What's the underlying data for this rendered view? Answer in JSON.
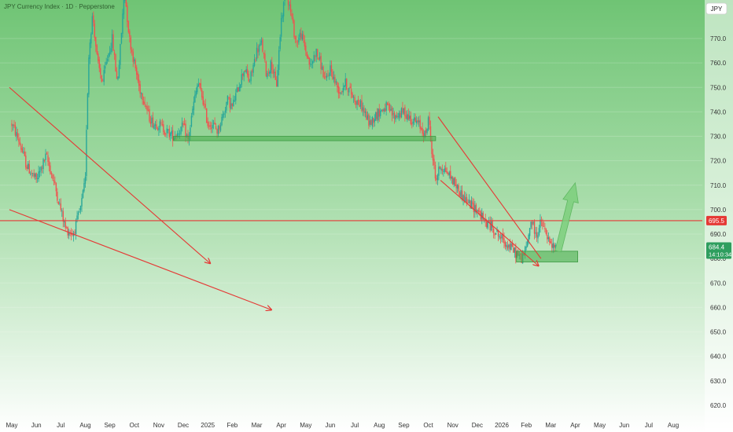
{
  "header": {
    "title": "JPY Currency Index · 1D · Pepperstone",
    "currency_badge": "JPY"
  },
  "colors": {
    "bg_top": "#6fc474",
    "bg_bottom": "#ffffff",
    "up_candle": "#26a69a",
    "down_candle": "#ef5350",
    "trendline": "#e53935",
    "zone_fill": "#4caf50",
    "arrow_fill": "#7ccf7c",
    "price_line": "#e53935",
    "price_tag": "#e53935",
    "last_tag": "#2e9e5e"
  },
  "chart_data": {
    "type": "candlestick",
    "title": "JPY Currency Index · 1D · Pepperstone",
    "ylim": [
      620,
      800
    ],
    "y_ticks": [
      620,
      630,
      640,
      650,
      660,
      670,
      680,
      690,
      700,
      710,
      720,
      730,
      740,
      750,
      760,
      770
    ],
    "y_tick_labels": [
      "620.0",
      "630.0",
      "640.0",
      "650.0",
      "660.0",
      "670.0",
      "680.0",
      "690.0",
      "700.0",
      "710.0",
      "720.0",
      "730.0",
      "740.0",
      "750.0",
      "760.0",
      "770.0"
    ],
    "x_ticks": [
      "May",
      "Jun",
      "Jul",
      "Aug",
      "Sep",
      "Oct",
      "Nov",
      "Dec",
      "2025",
      "Feb",
      "Mar",
      "Apr",
      "May",
      "Jun",
      "Jul",
      "Aug",
      "Sep",
      "Oct",
      "Nov",
      "Dec",
      "2026",
      "Feb",
      "Mar",
      "Apr",
      "May",
      "Jun",
      "Jul",
      "Aug"
    ],
    "x_tick_index": [
      0,
      1,
      2,
      3,
      4,
      5,
      6,
      7,
      8,
      9,
      10,
      11,
      12,
      13,
      14,
      15,
      16,
      17,
      18,
      19,
      20,
      21,
      22,
      23,
      24,
      25,
      26,
      27
    ],
    "price_path": [
      [
        0.0,
        735
      ],
      [
        0.3,
        728
      ],
      [
        0.6,
        718
      ],
      [
        1.0,
        712
      ],
      [
        1.4,
        722
      ],
      [
        1.7,
        712
      ],
      [
        2.0,
        700
      ],
      [
        2.2,
        692
      ],
      [
        2.5,
        690
      ],
      [
        2.8,
        700
      ],
      [
        3.0,
        712
      ],
      [
        3.05,
        735
      ],
      [
        3.15,
        765
      ],
      [
        3.3,
        780
      ],
      [
        3.5,
        760
      ],
      [
        3.7,
        752
      ],
      [
        3.9,
        762
      ],
      [
        4.1,
        770
      ],
      [
        4.3,
        752
      ],
      [
        4.4,
        762
      ],
      [
        4.6,
        790
      ],
      [
        4.8,
        770
      ],
      [
        5.0,
        760
      ],
      [
        5.2,
        750
      ],
      [
        5.4,
        745
      ],
      [
        5.6,
        738
      ],
      [
        5.8,
        735
      ],
      [
        6.0,
        735
      ],
      [
        6.3,
        732
      ],
      [
        6.6,
        730
      ],
      [
        7.0,
        734
      ],
      [
        7.2,
        728
      ],
      [
        7.4,
        742
      ],
      [
        7.6,
        752
      ],
      [
        7.8,
        745
      ],
      [
        8.0,
        735
      ],
      [
        8.2,
        735
      ],
      [
        8.4,
        732
      ],
      [
        8.6,
        738
      ],
      [
        8.8,
        745
      ],
      [
        9.0,
        742
      ],
      [
        9.3,
        752
      ],
      [
        9.5,
        758
      ],
      [
        9.7,
        752
      ],
      [
        10.0,
        765
      ],
      [
        10.2,
        768
      ],
      [
        10.4,
        755
      ],
      [
        10.6,
        760
      ],
      [
        10.8,
        750
      ],
      [
        11.0,
        778
      ],
      [
        11.2,
        790
      ],
      [
        11.4,
        780
      ],
      [
        11.6,
        768
      ],
      [
        11.8,
        772
      ],
      [
        12.0,
        765
      ],
      [
        12.2,
        758
      ],
      [
        12.4,
        765
      ],
      [
        12.6,
        760
      ],
      [
        12.8,
        752
      ],
      [
        13.0,
        758
      ],
      [
        13.2,
        752
      ],
      [
        13.4,
        748
      ],
      [
        13.6,
        752
      ],
      [
        14.0,
        745
      ],
      [
        14.3,
        742
      ],
      [
        14.6,
        735
      ],
      [
        14.8,
        738
      ],
      [
        15.0,
        740
      ],
      [
        15.3,
        742
      ],
      [
        15.6,
        738
      ],
      [
        16.0,
        740
      ],
      [
        16.3,
        737
      ],
      [
        16.6,
        735
      ],
      [
        16.9,
        730
      ],
      [
        17.0,
        738
      ],
      [
        17.1,
        728
      ],
      [
        17.3,
        712
      ],
      [
        17.5,
        718
      ],
      [
        17.8,
        715
      ],
      [
        18.0,
        712
      ],
      [
        18.3,
        707
      ],
      [
        18.6,
        703
      ],
      [
        19.0,
        700
      ],
      [
        19.3,
        695
      ],
      [
        19.6,
        693
      ],
      [
        20.0,
        688
      ],
      [
        20.3,
        685
      ],
      [
        20.5,
        683
      ],
      [
        20.8,
        680
      ],
      [
        21.0,
        684
      ],
      [
        21.2,
        696
      ],
      [
        21.4,
        689
      ],
      [
        21.6,
        695
      ],
      [
        21.8,
        690
      ],
      [
        22.0,
        685
      ],
      [
        22.2,
        684.4
      ]
    ],
    "last_price": "684.4",
    "countdown": "14:10:34",
    "hline_value": "695.5",
    "hline_level": 695.5,
    "zones": [
      {
        "x0": 6.6,
        "x1": 17.3,
        "y0": 728.2,
        "y1": 730.0
      },
      {
        "x0": 20.6,
        "x1": 23.1,
        "y0": 678.6,
        "y1": 683.0
      }
    ],
    "trendlines": [
      {
        "x0": -0.1,
        "y0": 750,
        "x1": 8.1,
        "y1": 678,
        "arrow": true
      },
      {
        "x0": -0.1,
        "y0": 700,
        "x1": 10.6,
        "y1": 659,
        "arrow": true
      },
      {
        "x0": 17.4,
        "y0": 738,
        "x1": 21.6,
        "y1": 680,
        "arrow": false
      },
      {
        "x0": 17.5,
        "y0": 712,
        "x1": 21.5,
        "y1": 677,
        "arrow": true
      }
    ],
    "projection_arrow": {
      "x0": 22.3,
      "y0": 683,
      "x1": 23.0,
      "y1": 711
    }
  }
}
